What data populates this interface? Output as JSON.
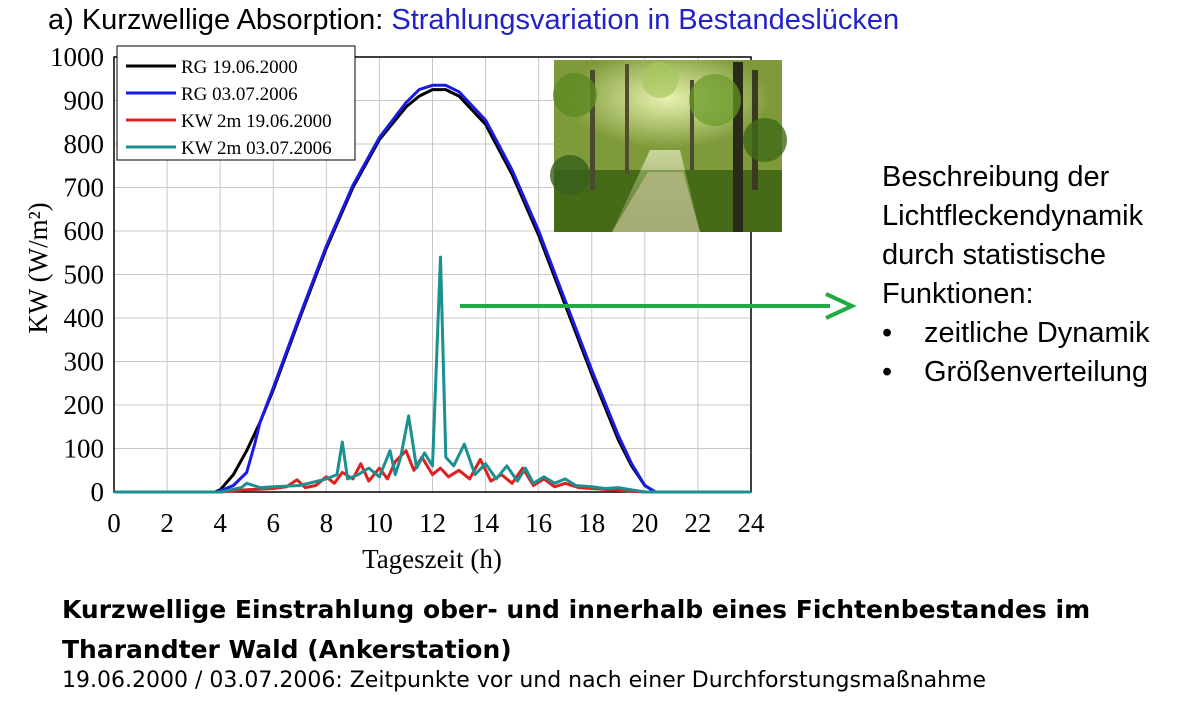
{
  "heading": {
    "prefix": "a) Kurzwellige Absorption:",
    "highlight": "Strahlungsvariation in Bestandeslücken"
  },
  "side_text": {
    "line1": "Beschreibung der",
    "line2": "Lichtfleckendynamik",
    "line3": "durch statistische",
    "line4": "Funktionen:",
    "bullets": [
      "zeitliche Dynamik",
      "Größenverteilung"
    ],
    "bullet_symbol": "•"
  },
  "caption": {
    "line1": "Kurzwellige Einstrahlung ober- und innerhalb eines Fichtenbestandes im",
    "line2": "Tharandter Wald (Ankerstation)",
    "line3": "19.06.2000 / 03.07.2006: Zeitpunkte vor und nach einer Durchforstungsmaßnahme"
  },
  "photo": {
    "description_icon": "forest-photo"
  },
  "arrow_color": "#22aa44",
  "chart_data": {
    "type": "line",
    "xlabel": "Tageszeit  (h)",
    "ylabel": "KW  (W/m²)",
    "xlim": [
      0,
      24
    ],
    "ylim": [
      0,
      1000
    ],
    "xticks": [
      0,
      2,
      4,
      6,
      8,
      10,
      12,
      14,
      16,
      18,
      20,
      22,
      24
    ],
    "yticks": [
      0,
      100,
      200,
      300,
      400,
      500,
      600,
      700,
      800,
      900,
      1000
    ],
    "grid": true,
    "legend": "top-left",
    "series": [
      {
        "name": "RG  19.06.2000",
        "color": "#000000",
        "x": [
          0,
          3.8,
          4.0,
          4.5,
          5.0,
          5.5,
          6.0,
          7.0,
          8.0,
          9.0,
          10.0,
          11.0,
          11.5,
          12.0,
          12.5,
          13.0,
          14.0,
          15.0,
          16.0,
          17.0,
          18.0,
          19.0,
          19.5,
          20.0,
          20.4,
          21.0,
          24
        ],
        "y": [
          0,
          0,
          5,
          40,
          95,
          160,
          235,
          400,
          560,
          700,
          810,
          885,
          910,
          925,
          925,
          910,
          845,
          730,
          590,
          430,
          270,
          120,
          60,
          15,
          0,
          0,
          0
        ]
      },
      {
        "name": "RG  03.07.2006",
        "color": "#1a1ae6",
        "x": [
          0,
          3.9,
          4.5,
          5.0,
          5.3,
          5.5,
          6.0,
          7.0,
          8.0,
          9.0,
          10.0,
          11.0,
          11.5,
          12.0,
          12.5,
          13.0,
          14.0,
          15.0,
          16.0,
          17.0,
          18.0,
          19.0,
          19.5,
          20.0,
          20.4,
          21.0,
          24
        ],
        "y": [
          0,
          0,
          15,
          45,
          110,
          160,
          240,
          405,
          565,
          705,
          815,
          895,
          925,
          935,
          935,
          920,
          855,
          740,
          600,
          440,
          280,
          130,
          65,
          15,
          0,
          0,
          0
        ]
      },
      {
        "name": "KW 2m 19.06.2000",
        "color": "#e02020",
        "x": [
          0,
          4.0,
          5.0,
          6.0,
          6.5,
          6.9,
          7.2,
          7.6,
          8.0,
          8.3,
          8.6,
          9.0,
          9.3,
          9.6,
          10.0,
          10.3,
          10.6,
          11.0,
          11.3,
          11.6,
          12.0,
          12.3,
          12.6,
          13.0,
          13.4,
          13.8,
          14.2,
          14.6,
          15.0,
          15.4,
          15.8,
          16.2,
          16.6,
          17.0,
          17.5,
          18.0,
          19.0,
          20.0,
          24
        ],
        "y": [
          0,
          0,
          5,
          8,
          12,
          28,
          10,
          15,
          35,
          20,
          45,
          30,
          65,
          25,
          55,
          30,
          70,
          95,
          50,
          80,
          40,
          55,
          35,
          50,
          30,
          75,
          25,
          40,
          20,
          55,
          15,
          30,
          12,
          20,
          10,
          8,
          4,
          0,
          0
        ]
      },
      {
        "name": "KW 2m 03.07.2006",
        "color": "#1a9090",
        "x": [
          0,
          4.0,
          4.8,
          5.0,
          5.5,
          6.0,
          7.0,
          8.0,
          8.4,
          8.6,
          8.8,
          9.2,
          9.6,
          10.0,
          10.4,
          10.6,
          10.8,
          11.1,
          11.4,
          11.7,
          12.0,
          12.3,
          12.5,
          12.8,
          13.2,
          13.6,
          14.0,
          14.4,
          14.8,
          15.2,
          15.5,
          15.8,
          16.2,
          16.6,
          17.0,
          17.4,
          18.0,
          18.5,
          19.0,
          19.5,
          20.0,
          24
        ],
        "y": [
          0,
          0,
          10,
          20,
          10,
          12,
          15,
          30,
          40,
          115,
          30,
          40,
          55,
          35,
          95,
          40,
          80,
          175,
          55,
          90,
          60,
          540,
          80,
          60,
          110,
          40,
          65,
          30,
          60,
          25,
          55,
          20,
          35,
          20,
          30,
          15,
          12,
          8,
          10,
          5,
          0,
          0
        ]
      }
    ]
  }
}
